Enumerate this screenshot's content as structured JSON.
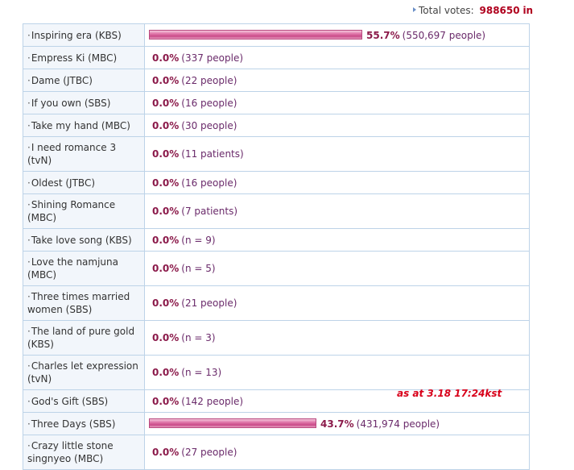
{
  "header": {
    "total_label": "Total votes:",
    "total_value": "988650",
    "total_unit": "in"
  },
  "note": "as at 3.18 17:24kst",
  "colors": {
    "bar": "#d9609e",
    "percent": "#8b1a4a",
    "count": "#6a2a6a",
    "note": "#d8001a",
    "border": "#bdd3e8"
  },
  "rows": [
    {
      "name": "Inspiring era (KBS)",
      "percent": "55.7%",
      "count": "(550,697 people)",
      "share": 0.557
    },
    {
      "name": "Empress Ki (MBC)",
      "percent": "0.0%",
      "count": "(337 people)",
      "share": 0
    },
    {
      "name": "Dame (JTBC)",
      "percent": "0.0%",
      "count": "(22 people)",
      "share": 0
    },
    {
      "name": "If you own (SBS)",
      "percent": "0.0%",
      "count": "(16 people)",
      "share": 0
    },
    {
      "name": "Take my hand (MBC)",
      "percent": "0.0%",
      "count": "(30 people)",
      "share": 0
    },
    {
      "name": "I need romance 3 (tvN)",
      "percent": "0.0%",
      "count": "(11 patients)",
      "share": 0
    },
    {
      "name": "Oldest (JTBC)",
      "percent": "0.0%",
      "count": "(16 people)",
      "share": 0
    },
    {
      "name": "Shining Romance (MBC)",
      "percent": "0.0%",
      "count": "(7 patients)",
      "share": 0
    },
    {
      "name": "Take love song (KBS)",
      "percent": "0.0%",
      "count": "(n = 9)",
      "share": 0
    },
    {
      "name": "Love the namjuna (MBC)",
      "percent": "0.0%",
      "count": "(n = 5)",
      "share": 0
    },
    {
      "name": "Three times married women (SBS)",
      "percent": "0.0%",
      "count": "(21 people)",
      "share": 0
    },
    {
      "name": "The land of pure gold (KBS)",
      "percent": "0.0%",
      "count": "(n = 3)",
      "share": 0
    },
    {
      "name": "Charles let expression (tvN)",
      "percent": "0.0%",
      "count": "(n = 13)",
      "share": 0
    },
    {
      "name": "God's Gift (SBS)",
      "percent": "0.0%",
      "count": "(142 people)",
      "share": 0
    },
    {
      "name": "Three Days (SBS)",
      "percent": "43.7%",
      "count": "(431,974 people)",
      "share": 0.437
    },
    {
      "name": "Crazy little stone singnyeo (MBC)",
      "percent": "0.0%",
      "count": "(27 people)",
      "share": 0
    }
  ]
}
